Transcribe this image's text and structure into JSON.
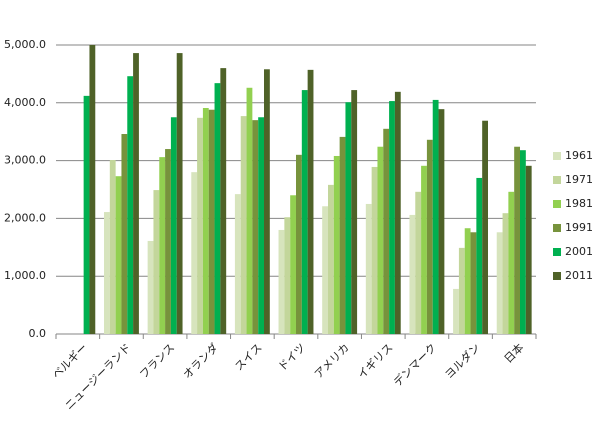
{
  "chart_data": {
    "type": "bar",
    "categories": [
      "ベルギー",
      "ニュージーランド",
      "フランス",
      "オランダ",
      "スイス",
      "ドイツ",
      "アメリカ",
      "イギリス",
      "デンマーク",
      "ヨルダン",
      "日本"
    ],
    "series": [
      {
        "name": "1961",
        "color": "#d7e4bd",
        "values": [
          null,
          2110,
          1610,
          2800,
          2420,
          1800,
          2210,
          2250,
          2060,
          780,
          1760
        ]
      },
      {
        "name": "1971",
        "color": "#c3d69b",
        "values": [
          null,
          3010,
          2490,
          3740,
          3770,
          2020,
          2580,
          2890,
          2460,
          1490,
          2090
        ]
      },
      {
        "name": "1981",
        "color": "#92d050",
        "values": [
          null,
          2730,
          3060,
          3910,
          4260,
          2400,
          3080,
          3240,
          2910,
          1830,
          2460
        ]
      },
      {
        "name": "1991",
        "color": "#77933c",
        "values": [
          null,
          3460,
          3200,
          3880,
          3700,
          3100,
          3410,
          3550,
          3360,
          1760,
          3240
        ]
      },
      {
        "name": "2001",
        "color": "#00b050",
        "values": [
          4120,
          4460,
          3750,
          4340,
          3750,
          4220,
          4010,
          4030,
          4050,
          2700,
          3180
        ]
      },
      {
        "name": "2011",
        "color": "#4f6228",
        "values": [
          5000,
          4860,
          4860,
          4600,
          4580,
          4570,
          4220,
          4190,
          3890,
          3690,
          2910
        ]
      }
    ],
    "ylim": [
      0,
      5000
    ],
    "yticks": [
      {
        "value": 0,
        "label": "0.0"
      },
      {
        "value": 1000,
        "label": "1,000.0"
      },
      {
        "value": 2000,
        "label": "2,000.0"
      },
      {
        "value": 3000,
        "label": "3,000.0"
      },
      {
        "value": 4000,
        "label": "4,000.0"
      },
      {
        "value": 5000,
        "label": "5,000.0"
      }
    ],
    "grid": true,
    "legend": "right"
  }
}
